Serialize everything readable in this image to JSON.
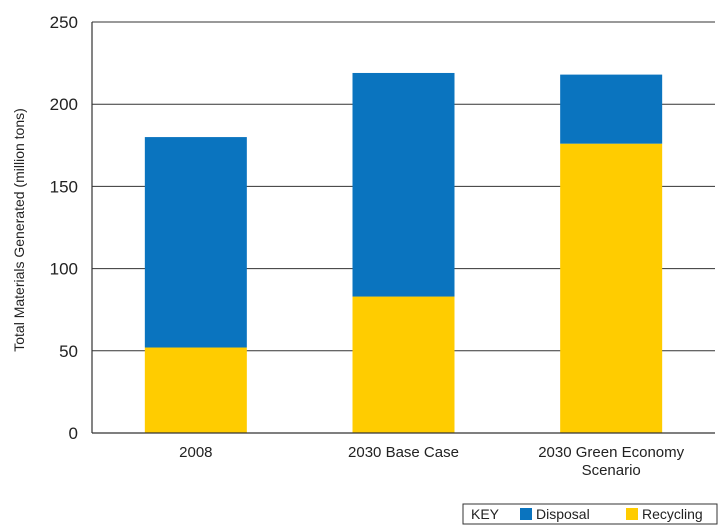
{
  "chart_data": {
    "type": "bar",
    "stacked": true,
    "categories": [
      [
        "2008"
      ],
      [
        "2030 Base Case"
      ],
      [
        "2030 Green Economy",
        "Scenario"
      ]
    ],
    "series": [
      {
        "name": "Recycling",
        "color": "#FFCC00",
        "values": [
          52,
          83,
          176
        ]
      },
      {
        "name": "Disposal",
        "color": "#0A74BF",
        "values": [
          128,
          136,
          42
        ]
      }
    ],
    "title": "",
    "xlabel": "",
    "ylabel": "Total Materials Generated (million tons)",
    "ylim": [
      0,
      250
    ],
    "yticks": [
      0,
      50,
      100,
      150,
      200,
      250
    ],
    "grid": true,
    "legend": {
      "position": "bottom-right",
      "title": "KEY",
      "order": [
        "Disposal",
        "Recycling"
      ]
    }
  }
}
